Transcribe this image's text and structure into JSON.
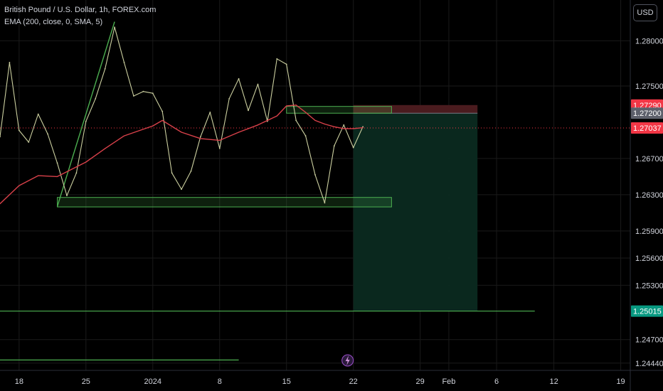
{
  "header": {
    "symbol_line": "British Pound / U.S. Dollar, 1h, FOREX.com",
    "indicator_line": "EMA (200, close, 0, SMA, 5)"
  },
  "currency_button": "USD",
  "colors": {
    "background": "#000000",
    "price": "#ccd0a0",
    "ema": "#d9414a",
    "zone": "#4caf50",
    "target_fill": "#0b2a20",
    "stop_fill": "#4a1b1e",
    "current_price": "#f23645",
    "grid": "#1a1a1a"
  },
  "chart_data": {
    "type": "line",
    "title": "British Pound / U.S. Dollar, 1h, FOREX.com",
    "y_axis": {
      "range": [
        1.2436,
        1.2845
      ],
      "ticks": [
        "1.28000",
        "1.27500",
        "1.26700",
        "1.26300",
        "1.25900",
        "1.25600",
        "1.25300",
        "1.24700",
        "1.24440"
      ]
    },
    "x_axis": {
      "range_days": [
        "2023-12-16",
        "2024-02-20"
      ],
      "ticks": [
        {
          "label": "18",
          "date": "2023-12-18"
        },
        {
          "label": "25",
          "date": "2023-12-25"
        },
        {
          "label": "2024",
          "date": "2024-01-01"
        },
        {
          "label": "8",
          "date": "2024-01-08"
        },
        {
          "label": "15",
          "date": "2024-01-15"
        },
        {
          "label": "22",
          "date": "2024-01-22"
        },
        {
          "label": "29",
          "date": "2024-01-29"
        },
        {
          "label": "Feb",
          "date": "2024-02-01"
        },
        {
          "label": "6",
          "date": "2024-02-06"
        },
        {
          "label": "12",
          "date": "2024-02-12"
        },
        {
          "label": "19",
          "date": "2024-02-19"
        }
      ]
    },
    "series": [
      {
        "key": "price",
        "points": [
          [
            "2023-12-16",
            1.2694
          ],
          [
            "2023-12-17",
            1.2776
          ],
          [
            "2023-12-18",
            1.2701
          ],
          [
            "2023-12-19",
            1.2688
          ],
          [
            "2023-12-20",
            1.2719
          ],
          [
            "2023-12-21",
            1.2697
          ],
          [
            "2023-12-22",
            1.2665
          ],
          [
            "2023-12-23",
            1.2629
          ],
          [
            "2023-12-24",
            1.2654
          ],
          [
            "2023-12-25",
            1.2711
          ],
          [
            "2023-12-26",
            1.2736
          ],
          [
            "2023-12-27",
            1.2769
          ],
          [
            "2023-12-28",
            1.2815
          ],
          [
            "2023-12-29",
            1.2776
          ],
          [
            "2023-12-30",
            1.2739
          ],
          [
            "2023-12-31",
            1.2744
          ],
          [
            "2024-01-01",
            1.2742
          ],
          [
            "2024-01-02",
            1.2722
          ],
          [
            "2024-01-03",
            1.2654
          ],
          [
            "2024-01-04",
            1.2636
          ],
          [
            "2024-01-05",
            1.2656
          ],
          [
            "2024-01-06",
            1.2694
          ],
          [
            "2024-01-07",
            1.2721
          ],
          [
            "2024-01-08",
            1.2681
          ],
          [
            "2024-01-09",
            1.2736
          ],
          [
            "2024-01-10",
            1.2758
          ],
          [
            "2024-01-11",
            1.2723
          ],
          [
            "2024-01-12",
            1.2752
          ],
          [
            "2024-01-13",
            1.2711
          ],
          [
            "2024-01-14",
            1.278
          ],
          [
            "2024-01-15",
            1.2774
          ],
          [
            "2024-01-16",
            1.2712
          ],
          [
            "2024-01-17",
            1.2695
          ],
          [
            "2024-01-18",
            1.2652
          ],
          [
            "2024-01-19",
            1.2621
          ],
          [
            "2024-01-20",
            1.2684
          ],
          [
            "2024-01-21",
            1.2707
          ],
          [
            "2024-01-22",
            1.2682
          ],
          [
            "2024-01-23",
            1.2705
          ]
        ]
      },
      {
        "key": "ema",
        "points": [
          [
            "2023-12-16",
            1.262
          ],
          [
            "2023-12-18",
            1.264
          ],
          [
            "2023-12-20",
            1.2651
          ],
          [
            "2023-12-22",
            1.265
          ],
          [
            "2023-12-25",
            1.2666
          ],
          [
            "2023-12-27",
            1.2681
          ],
          [
            "2023-12-29",
            1.2695
          ],
          [
            "2024-01-01",
            1.2706
          ],
          [
            "2024-01-02",
            1.2712
          ],
          [
            "2024-01-04",
            1.2699
          ],
          [
            "2024-01-06",
            1.2692
          ],
          [
            "2024-01-08",
            1.269
          ],
          [
            "2024-01-10",
            1.2699
          ],
          [
            "2024-01-12",
            1.2707
          ],
          [
            "2024-01-14",
            1.2717
          ],
          [
            "2024-01-15",
            1.2728
          ],
          [
            "2024-01-16",
            1.2729
          ],
          [
            "2024-01-17",
            1.2721
          ],
          [
            "2024-01-18",
            1.2712
          ],
          [
            "2024-01-19",
            1.2708
          ],
          [
            "2024-01-20",
            1.2705
          ],
          [
            "2024-01-21",
            1.2703
          ],
          [
            "2024-01-22",
            1.2703
          ],
          [
            "2024-01-23",
            1.2704
          ]
        ]
      }
    ],
    "support_zone": {
      "from": "2023-12-22",
      "to": "2024-01-26",
      "low": 1.26165,
      "high": 1.2627
    },
    "resistance_zone": {
      "from": "2024-01-15",
      "to": "2024-01-26",
      "low": 1.272,
      "high": 1.27275
    },
    "trend_line": {
      "from": [
        "2023-12-22",
        1.2617
      ],
      "to": [
        "2023-12-28",
        1.2821
      ]
    },
    "short_position": {
      "from": "2024-01-22",
      "to": "2024-02-04",
      "entry": 1.272,
      "stop": 1.2729,
      "target": 1.25015
    },
    "horizontal_lines": [
      {
        "from": "2023-12-16",
        "to": "2024-02-10",
        "value": 1.25015
      },
      {
        "from": "2023-12-16",
        "to": "2024-01-10",
        "value": 1.24475
      }
    ],
    "current_price": 1.27037,
    "price_labels": [
      {
        "value": 1.2729,
        "text": "1.27290",
        "color": "#f23645"
      },
      {
        "value": 1.272,
        "text": "1.27200",
        "color": "#5d606b"
      },
      {
        "value": 1.27037,
        "text": "1.27037",
        "color": "#f23645"
      },
      {
        "value": 1.25015,
        "text": "1.25015",
        "color": "#089981"
      }
    ]
  }
}
